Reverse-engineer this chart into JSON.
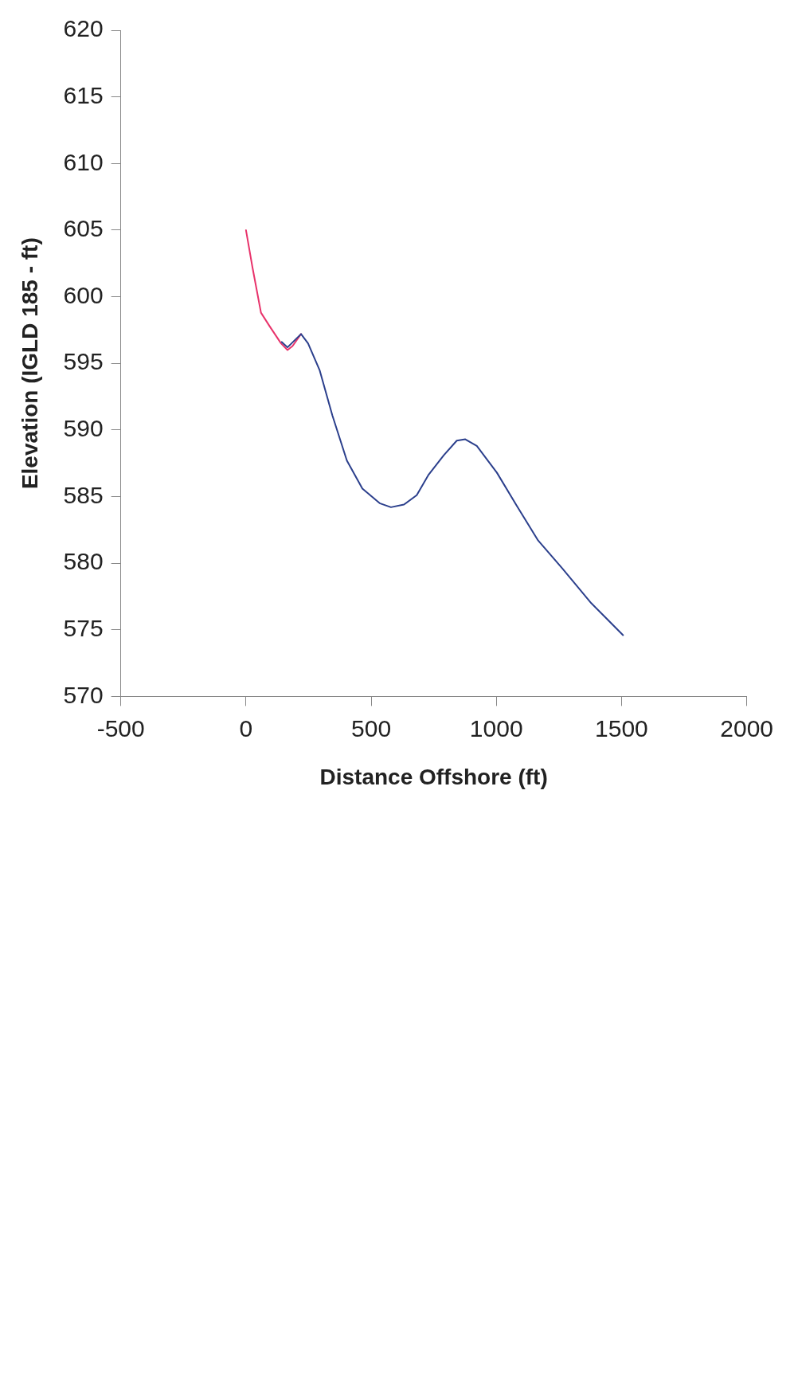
{
  "chart_data": {
    "type": "line",
    "xlabel": "Distance Offshore (ft)",
    "ylabel": "Elevation (IGLD 185 - ft)",
    "xlim": [
      -500,
      2000
    ],
    "xticks": [
      -500,
      0,
      500,
      1000,
      1500,
      2000
    ],
    "ylim": [
      570,
      620
    ],
    "yticks": [
      570,
      575,
      580,
      585,
      590,
      595,
      600,
      605,
      610,
      615,
      620
    ],
    "marker": "none",
    "line_style": "solid",
    "series": [
      {
        "color": "#2b3f8c",
        "x": [
          143,
          166,
          220,
          248,
          294,
          345,
          403,
          465,
          534,
          579,
          631,
          682,
          728,
          790,
          842,
          876,
          922,
          1002,
          1082,
          1167,
          1264,
          1379,
          1506
        ],
        "values": [
          596.6,
          596.2,
          597.2,
          596.5,
          594.5,
          591.1,
          587.7,
          585.6,
          584.5,
          584.2,
          584.4,
          585.1,
          586.6,
          588.1,
          589.2,
          589.3,
          588.8,
          586.8,
          584.3,
          581.7,
          579.6,
          577.0,
          574.6
        ]
      },
      {
        "color": "#e8336b",
        "x": [
          0,
          26,
          60,
          94,
          140,
          166,
          186,
          220
        ],
        "values": [
          605.0,
          602.2,
          598.8,
          597.8,
          596.5,
          596.0,
          596.3,
          597.2
        ]
      }
    ]
  }
}
